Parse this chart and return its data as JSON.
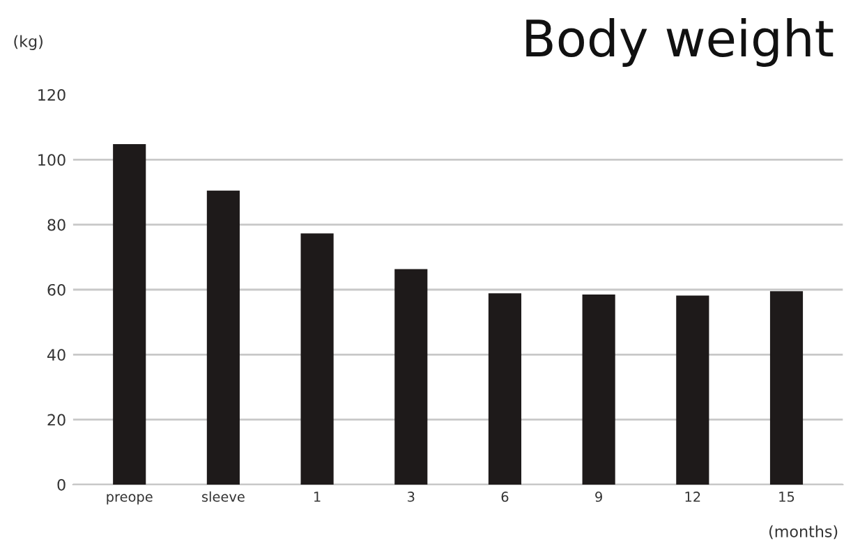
{
  "chart_data": {
    "type": "bar",
    "title": "Body weight",
    "xlabel": "(months)",
    "ylabel": "(kg)",
    "categories": [
      "preope",
      "sleeve",
      "1",
      "3",
      "6",
      "9",
      "12",
      "15"
    ],
    "values": [
      104.8,
      90.5,
      77.3,
      66.3,
      58.9,
      58.5,
      58.2,
      59.5
    ],
    "color": "#1e1a1a",
    "ylim": [
      0,
      120
    ],
    "yticks": [
      0,
      20,
      40,
      60,
      80,
      100,
      120
    ],
    "grid": "y",
    "legend": false
  }
}
